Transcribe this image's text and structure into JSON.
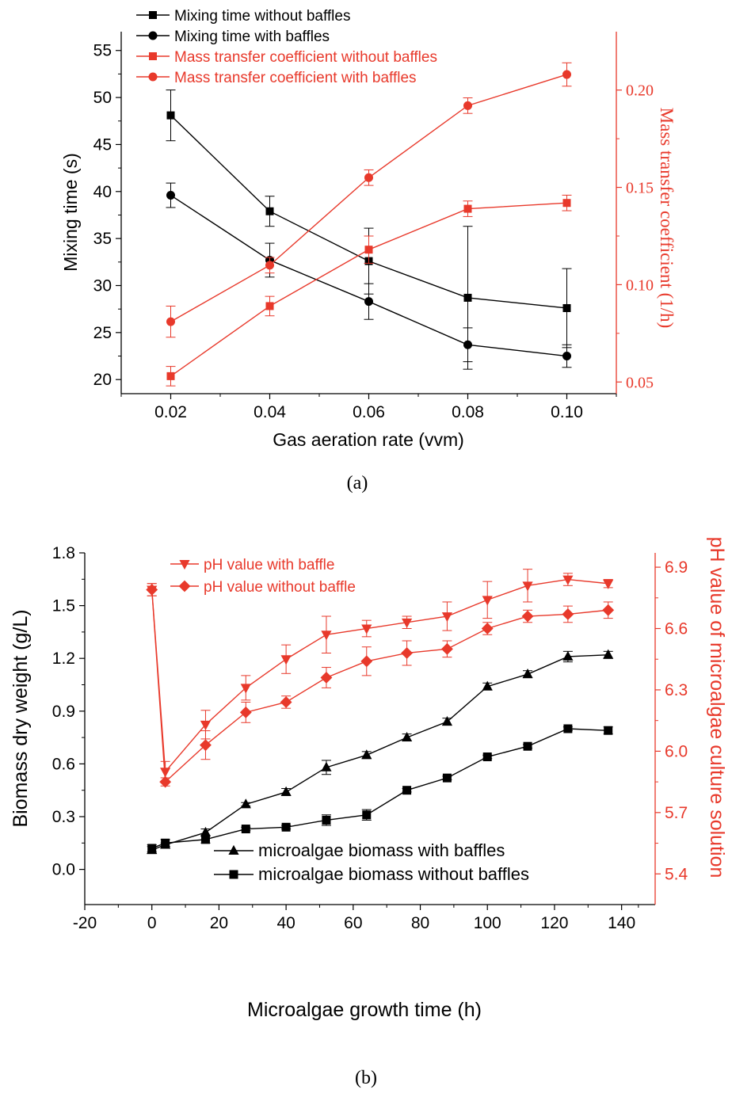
{
  "chart_data": [
    {
      "type": "line",
      "panel_label": "(a)",
      "xlabel": "Gas aeration rate (vvm)",
      "ylabel_left": "Mixing time (s)",
      "ylabel_right": "Mass transfer coefficient (1/h)",
      "x": [
        0.02,
        0.04,
        0.06,
        0.08,
        0.1
      ],
      "x_ticks": [
        "0.02",
        "0.04",
        "0.06",
        "0.08",
        "0.10"
      ],
      "y_left_ticks": [
        "20",
        "25",
        "30",
        "35",
        "40",
        "45",
        "50",
        "55"
      ],
      "y_right_ticks": [
        "0.05",
        "0.10",
        "0.15",
        "0.20"
      ],
      "xlim": [
        0.01,
        0.11
      ],
      "ylim_left": [
        18.5,
        57
      ],
      "ylim_right": [
        0.044,
        0.23
      ],
      "legend_position": "top-left",
      "series": [
        {
          "name": "Mixing time without baffles",
          "axis": "left",
          "color": "#000000",
          "marker": "square",
          "values": [
            48.1,
            37.9,
            32.6,
            28.7,
            27.6
          ],
          "err": [
            2.7,
            1.6,
            3.5,
            7.6,
            4.2
          ]
        },
        {
          "name": "Mixing time with baffles",
          "axis": "left",
          "color": "#000000",
          "marker": "circle",
          "values": [
            39.6,
            32.7,
            28.3,
            23.7,
            22.5
          ],
          "err": [
            1.3,
            1.8,
            1.9,
            1.8,
            1.2
          ]
        },
        {
          "name": "Mass transfer coefficient without baffles",
          "axis": "right",
          "color": "#e8392b",
          "marker": "square",
          "values": [
            0.053,
            0.089,
            0.118,
            0.139,
            0.142
          ],
          "err": [
            0.005,
            0.005,
            0.007,
            0.004,
            0.004
          ]
        },
        {
          "name": "Mass transfer coefficient with baffles",
          "axis": "right",
          "color": "#e8392b",
          "marker": "circle",
          "values": [
            0.081,
            0.11,
            0.155,
            0.192,
            0.208
          ],
          "err": [
            0.008,
            0.004,
            0.004,
            0.004,
            0.006
          ]
        }
      ]
    },
    {
      "type": "line",
      "panel_label": "(b)",
      "xlabel": "Microalgae growth time (h)",
      "ylabel_left": "Biomass dry weight (g/L)",
      "ylabel_right": "pH value of microalgae culture solution",
      "x": [
        0,
        4,
        16,
        28,
        40,
        52,
        64,
        76,
        88,
        100,
        112,
        124,
        136
      ],
      "x_ticks": [
        "-20",
        "0",
        "20",
        "40",
        "60",
        "80",
        "100",
        "120",
        "140"
      ],
      "y_left_ticks": [
        "0.0",
        "0.3",
        "0.6",
        "0.9",
        "1.2",
        "1.5",
        "1.8"
      ],
      "y_right_ticks": [
        "5.4",
        "5.7",
        "6.0",
        "6.3",
        "6.6",
        "6.9"
      ],
      "xlim": [
        -20,
        150
      ],
      "ylim_left": [
        -0.2,
        1.8
      ],
      "ylim_right": [
        5.25,
        6.97
      ],
      "series": [
        {
          "name": "pH value with baffle",
          "axis": "right",
          "color": "#e8392b",
          "marker": "triangle-down",
          "legend_group": "top",
          "values": [
            6.79,
            5.9,
            6.13,
            6.31,
            6.45,
            6.57,
            6.6,
            6.63,
            6.66,
            6.74,
            6.81,
            6.84,
            6.82
          ],
          "err": [
            0.03,
            0.05,
            0.07,
            0.06,
            0.07,
            0.09,
            0.04,
            0.03,
            0.07,
            0.09,
            0.08,
            0.03,
            0.02
          ]
        },
        {
          "name": "pH value without baffle",
          "axis": "right",
          "color": "#e8392b",
          "marker": "diamond",
          "legend_group": "top",
          "values": [
            6.79,
            5.85,
            6.03,
            6.19,
            6.24,
            6.36,
            6.44,
            6.48,
            6.5,
            6.6,
            6.66,
            6.67,
            6.69
          ],
          "err": [
            0.03,
            0.02,
            0.07,
            0.05,
            0.03,
            0.05,
            0.07,
            0.06,
            0.04,
            0.03,
            0.03,
            0.04,
            0.04
          ]
        },
        {
          "name": "microalgae biomass with baffles",
          "axis": "left",
          "color": "#000000",
          "marker": "triangle-up",
          "legend_group": "bottom",
          "values": [
            0.11,
            0.14,
            0.21,
            0.37,
            0.44,
            0.58,
            0.65,
            0.75,
            0.84,
            1.04,
            1.11,
            1.21,
            1.22
          ],
          "err": [
            0.02,
            0.01,
            0.02,
            0.01,
            0.02,
            0.04,
            0.02,
            0.02,
            0.02,
            0.02,
            0.02,
            0.03,
            0.02
          ]
        },
        {
          "name": "microalgae biomass without baffles",
          "axis": "left",
          "color": "#000000",
          "marker": "square",
          "legend_group": "bottom",
          "values": [
            0.12,
            0.15,
            0.17,
            0.23,
            0.24,
            0.28,
            0.31,
            0.45,
            0.52,
            0.64,
            0.7,
            0.8,
            0.79
          ],
          "err": [
            0.02,
            0.02,
            0.02,
            0.01,
            0.01,
            0.03,
            0.03,
            0.01,
            0.01,
            0.01,
            0.01,
            0.01,
            0.02
          ]
        }
      ]
    }
  ]
}
